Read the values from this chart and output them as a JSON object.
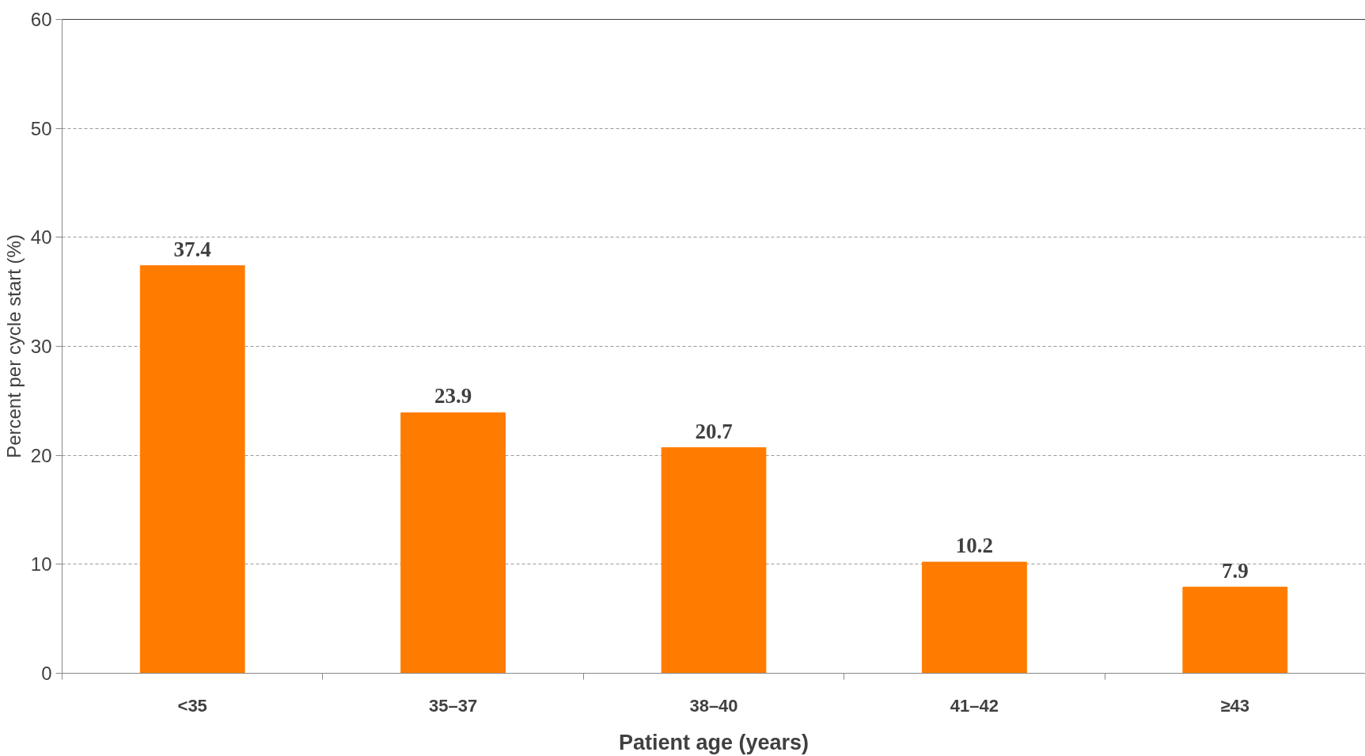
{
  "chart_data": {
    "type": "bar",
    "categories": [
      "<35",
      "35–37",
      "38–40",
      "41–42",
      "≥43"
    ],
    "values": [
      37.4,
      23.9,
      20.7,
      10.2,
      7.9
    ],
    "color": "#ff7c00",
    "ylim": [
      0,
      60
    ],
    "yticks": [
      0,
      10,
      20,
      30,
      40,
      50,
      60
    ],
    "grid": "y",
    "data_labels": true,
    "xlabel": "Patient age (years)",
    "ylabel": "Percent per cycle start (%)"
  }
}
